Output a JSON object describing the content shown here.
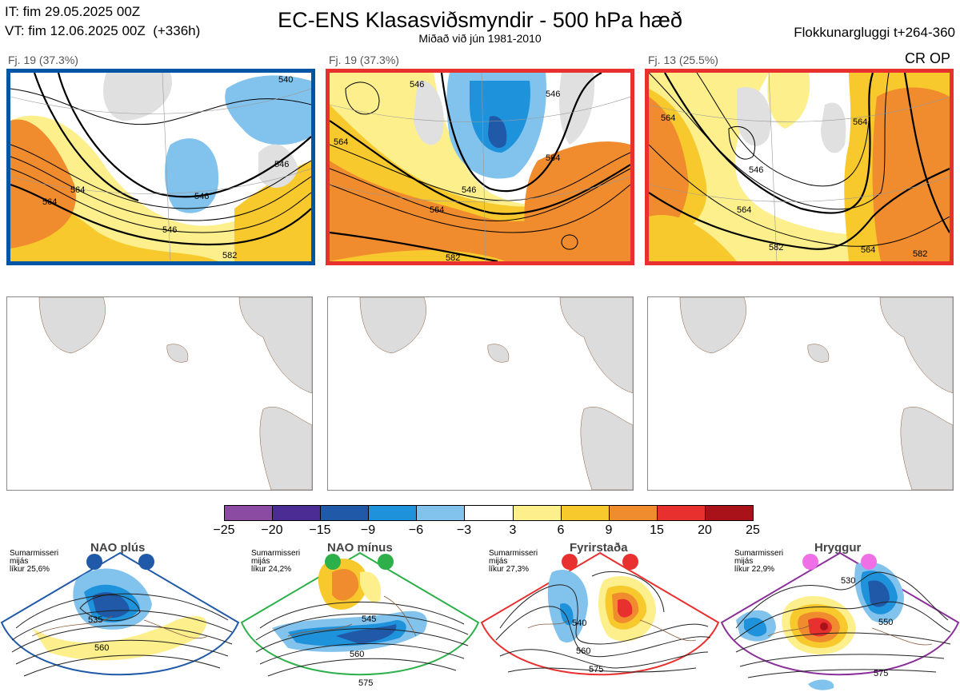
{
  "header": {
    "it_line": "IT: fim 29.05.2025 00Z",
    "vt_line": "VT: fim 12.06.2025 00Z  (+336h)",
    "title": "EC-ENS Klasasviðsmyndir - 500 hPa hæð",
    "subtitle": "Miðað við jún 1981-2010",
    "window": "Flokkunargluggi t+264-360"
  },
  "panels": [
    {
      "label": "Fj. 19 (37.3%)",
      "border_color": "#0055a4",
      "contours": [
        "546",
        "546",
        "546",
        "564",
        "564",
        "582",
        "540"
      ]
    },
    {
      "label": "Fj. 19 (37.3%)",
      "border_color": "#e8302e",
      "contours": [
        "546",
        "546",
        "546",
        "564",
        "564",
        "582",
        "564"
      ]
    },
    {
      "label": "Fj. 13 (25.5%)",
      "border_color": "#e8302e",
      "contours": [
        "564",
        "564",
        "546",
        "564",
        "582",
        "564",
        "582"
      ]
    }
  ],
  "cr_op": "CR OP",
  "colorbar": {
    "colors": [
      "#8b4ba2",
      "#4b2c94",
      "#1f59a8",
      "#1f92dc",
      "#82c3ee",
      "#ffffff",
      "#fdf08c",
      "#f8c92c",
      "#f08c2e",
      "#e8302e",
      "#a81218"
    ],
    "ticks": [
      "−25",
      "−20",
      "−15",
      "−9",
      "−6",
      "−3",
      "3",
      "6",
      "9",
      "15",
      "20",
      "25"
    ]
  },
  "regimes": [
    {
      "name": "NAO plús",
      "season": "Sumarmisseri",
      "mean": "mijás",
      "prob": "líkur 25,6%",
      "dot_color": "#1f59a8",
      "border_color": "#1f59a8",
      "contours": [
        "535",
        "560"
      ]
    },
    {
      "name": "NAO mínus",
      "season": "Sumarmisseri",
      "mean": "mijás",
      "prob": "líkur 24,2%",
      "dot_color": "#2db04a",
      "border_color": "#2db04a",
      "contours": [
        "545",
        "560",
        "575"
      ]
    },
    {
      "name": "Fyrirstaða",
      "season": "Sumarmisseri",
      "mean": "mijás",
      "prob": "líkur 27,3%",
      "dot_color": "#e8302e",
      "border_color": "#e8302e",
      "contours": [
        "540",
        "560",
        "575"
      ]
    },
    {
      "name": "Hryggur",
      "season": "Sumarmisseri",
      "mean": "mijás",
      "prob": "líkur 22,9%",
      "dot_color": "#ee6fe6",
      "border_color": "#8a2f9a",
      "contours": [
        "530",
        "550",
        "575"
      ]
    }
  ]
}
